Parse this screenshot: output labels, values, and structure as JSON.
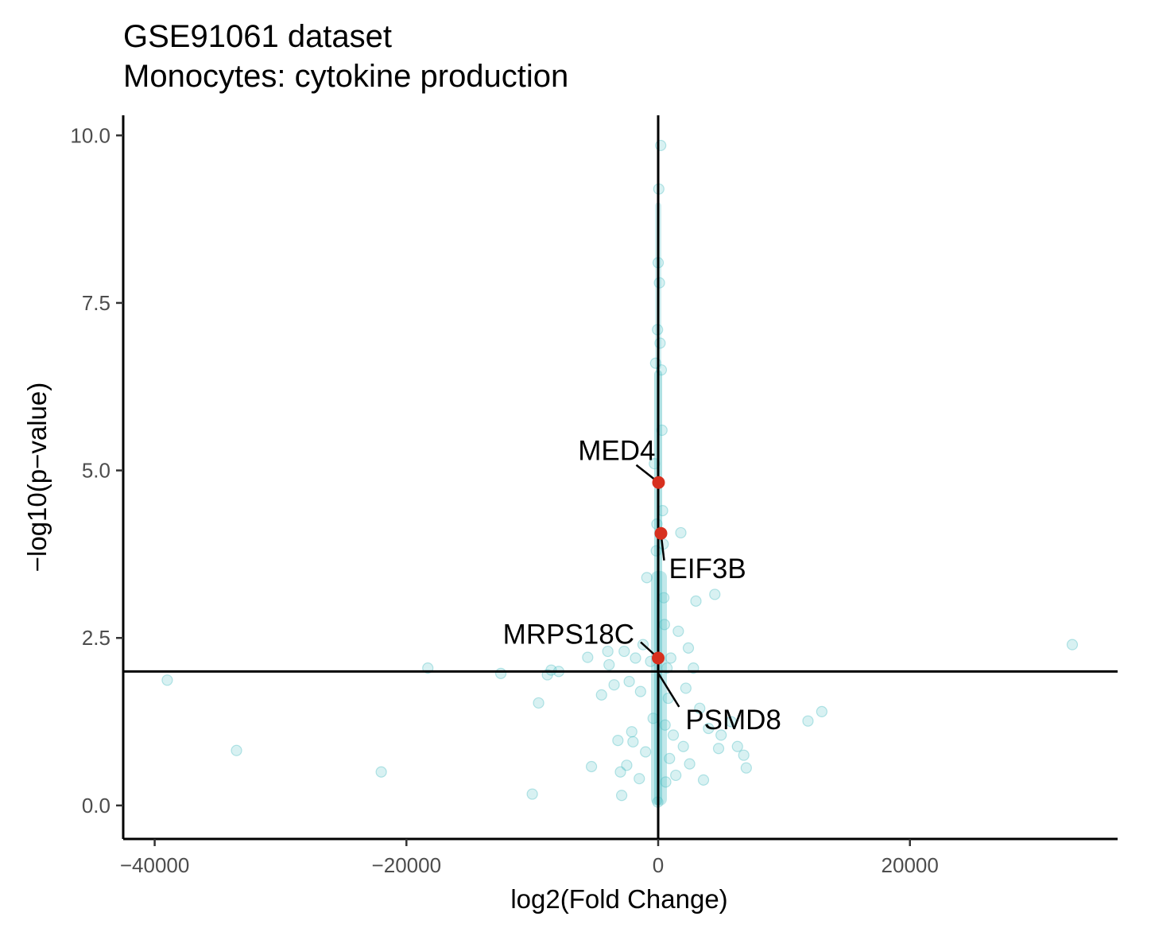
{
  "chart_data": {
    "type": "scatter",
    "title": "GSE91061 dataset",
    "subtitle": "Monocytes: cytokine production",
    "xlabel": "log2(Fold Change)",
    "ylabel": "−log10(p−value)",
    "xlim": [
      -42500,
      36500
    ],
    "ylim": [
      -0.5,
      10.3
    ],
    "xticks": [
      -40000,
      -20000,
      0,
      20000
    ],
    "xtick_labels": [
      "−40000",
      "−20000",
      "0",
      "20000"
    ],
    "yticks": [
      0,
      2.5,
      5,
      7.5,
      10
    ],
    "ytick_labels": [
      "0.0",
      "2.5",
      "5.0",
      "7.5",
      "10.0"
    ],
    "grid": false,
    "reference_lines": {
      "hline_y": 2,
      "vline_x": 0
    },
    "colors": {
      "points": "#4dbdc2",
      "highlight": "#d7301f",
      "axis": "#000000"
    },
    "background_points": [
      [
        -39000,
        1.87
      ],
      [
        -33500,
        0.82
      ],
      [
        -22000,
        0.5
      ],
      [
        -18300,
        2.05
      ],
      [
        -12500,
        1.97
      ],
      [
        -10000,
        0.17
      ],
      [
        -9500,
        1.53
      ],
      [
        -8800,
        1.95
      ],
      [
        -8500,
        2.02
      ],
      [
        -7900,
        2.0
      ],
      [
        -5600,
        2.21
      ],
      [
        -5300,
        0.58
      ],
      [
        -4500,
        1.65
      ],
      [
        -4000,
        2.3
      ],
      [
        -3900,
        2.1
      ],
      [
        -3500,
        1.8
      ],
      [
        -3200,
        0.97
      ],
      [
        -3000,
        0.5
      ],
      [
        -2900,
        0.15
      ],
      [
        -2700,
        2.3
      ],
      [
        -2500,
        0.6
      ],
      [
        -2300,
        1.85
      ],
      [
        -2100,
        1.1
      ],
      [
        -2000,
        0.95
      ],
      [
        -1800,
        2.2
      ],
      [
        -1500,
        0.4
      ],
      [
        -1400,
        1.7
      ],
      [
        -1200,
        2.4
      ],
      [
        -1000,
        0.8
      ],
      [
        -900,
        3.4
      ],
      [
        -600,
        2.15
      ],
      [
        -400,
        1.3
      ],
      [
        -300,
        5.1
      ],
      [
        -200,
        6.6
      ],
      [
        -150,
        3.8
      ],
      [
        -100,
        4.2
      ],
      [
        -50,
        7.1
      ],
      [
        -30,
        0.05
      ],
      [
        0,
        8.1
      ],
      [
        50,
        9.2
      ],
      [
        100,
        7.8
      ],
      [
        150,
        6.9
      ],
      [
        200,
        9.85
      ],
      [
        250,
        6.5
      ],
      [
        300,
        5.6
      ],
      [
        350,
        4.4
      ],
      [
        400,
        3.9
      ],
      [
        450,
        3.1
      ],
      [
        500,
        2.7
      ],
      [
        550,
        1.2
      ],
      [
        600,
        0.35
      ],
      [
        700,
        2.05
      ],
      [
        800,
        1.6
      ],
      [
        900,
        0.7
      ],
      [
        1000,
        2.2
      ],
      [
        1200,
        1.05
      ],
      [
        1400,
        0.45
      ],
      [
        1600,
        2.6
      ],
      [
        1800,
        4.07
      ],
      [
        2000,
        0.88
      ],
      [
        2200,
        1.75
      ],
      [
        2400,
        2.35
      ],
      [
        2500,
        0.62
      ],
      [
        2800,
        2.05
      ],
      [
        3000,
        3.05
      ],
      [
        3300,
        1.45
      ],
      [
        3600,
        0.38
      ],
      [
        4000,
        1.15
      ],
      [
        4500,
        3.15
      ],
      [
        4800,
        0.85
      ],
      [
        5000,
        1.05
      ],
      [
        5800,
        1.25
      ],
      [
        6300,
        0.88
      ],
      [
        6800,
        0.75
      ],
      [
        7000,
        0.56
      ],
      [
        11900,
        1.26
      ],
      [
        13000,
        1.4
      ],
      [
        32900,
        2.4
      ]
    ],
    "highlighted_points": [
      {
        "label": "MED4",
        "x": 30,
        "y": 4.82
      },
      {
        "label": "EIF3B",
        "x": 220,
        "y": 4.06
      },
      {
        "label": "MRPS18C",
        "x": 0,
        "y": 2.2
      },
      {
        "label": "PSMD8",
        "x": 20,
        "y": 1.97
      }
    ]
  }
}
